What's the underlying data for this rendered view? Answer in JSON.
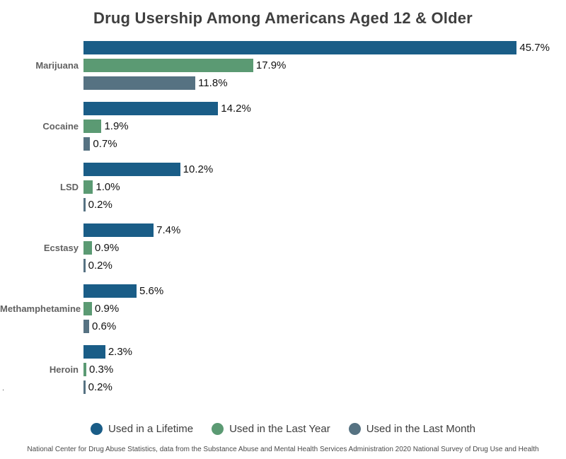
{
  "title": "Drug Usership Among Americans Aged 12 & Older",
  "stray_mark": ".",
  "footnote": "National Center for Drug Abuse Statistics, data from the Substance Abuse and Mental Health Services Administration 2020 National Survey of Drug Use and Health",
  "chart_data": {
    "type": "bar",
    "orientation": "horizontal",
    "title": "Drug Usership Among Americans Aged 12 & Older",
    "categories": [
      "Marijuana",
      "Cocaine",
      "LSD",
      "Ecstasy",
      "Methamphetamine",
      "Heroin"
    ],
    "series": [
      {
        "name": "Used in a Lifetime",
        "key": "used-in-a-lifetime",
        "color": "#1a5d87",
        "values": [
          45.7,
          14.2,
          10.2,
          7.4,
          5.6,
          2.3
        ],
        "labels": [
          "45.7%",
          "14.2%",
          "10.2%",
          "7.4%",
          "5.6%",
          "2.3%"
        ]
      },
      {
        "name": "Used in the Last Year",
        "key": "used-in-the-last-year",
        "color": "#5b9a73",
        "values": [
          17.9,
          1.9,
          1.0,
          0.9,
          0.9,
          0.3
        ],
        "labels": [
          "17.9%",
          "1.9%",
          "1.0%",
          "0.9%",
          "0.9%",
          "0.3%"
        ]
      },
      {
        "name": "Used in the Last Month",
        "key": "used-in-the-last-month",
        "color": "#567282",
        "values": [
          11.8,
          0.7,
          0.2,
          0.2,
          0.6,
          0.2
        ],
        "labels": [
          "11.8%",
          "0.7%",
          "0.2%",
          "0.2%",
          "0.6%",
          "0.2%"
        ]
      }
    ],
    "value_suffix": "%",
    "xlim": [
      0,
      50
    ],
    "grid": false,
    "legend_position": "bottom",
    "data_labels": true
  }
}
